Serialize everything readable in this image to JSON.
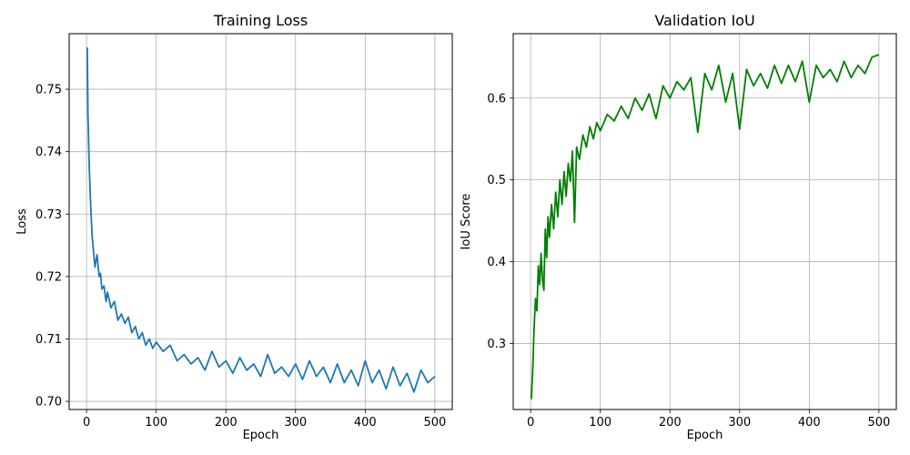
{
  "chart_data": [
    {
      "type": "line",
      "title": "Training Loss",
      "xlabel": "Epoch",
      "ylabel": "Loss",
      "xlim": [
        -25,
        525
      ],
      "ylim": [
        0.6987,
        0.7589
      ],
      "xticks": [
        0,
        100,
        200,
        300,
        400,
        500
      ],
      "yticks": [
        0.7,
        0.71,
        0.72,
        0.73,
        0.74,
        0.75
      ],
      "ytick_labels": [
        "0.70",
        "0.71",
        "0.72",
        "0.73",
        "0.74",
        "0.75"
      ],
      "grid": true,
      "color": "#1f77b4",
      "series": [
        {
          "x": [
            1,
            2,
            4,
            6,
            8,
            10,
            12,
            15,
            18,
            20,
            22,
            25,
            28,
            30,
            35,
            40,
            45,
            50,
            55,
            60,
            65,
            70,
            75,
            80,
            85,
            90,
            95,
            100,
            110,
            120,
            130,
            140,
            150,
            160,
            170,
            180,
            190,
            200,
            210,
            220,
            230,
            240,
            250,
            260,
            270,
            280,
            290,
            300,
            310,
            320,
            330,
            340,
            350,
            360,
            370,
            380,
            390,
            400,
            410,
            420,
            430,
            440,
            450,
            460,
            470,
            480,
            490,
            500
          ],
          "y": [
            0.7567,
            0.746,
            0.737,
            0.731,
            0.7265,
            0.724,
            0.7215,
            0.7235,
            0.72,
            0.7205,
            0.718,
            0.7185,
            0.716,
            0.7175,
            0.715,
            0.716,
            0.713,
            0.714,
            0.7125,
            0.7135,
            0.711,
            0.712,
            0.71,
            0.711,
            0.709,
            0.71,
            0.7085,
            0.7095,
            0.708,
            0.709,
            0.7065,
            0.7075,
            0.706,
            0.707,
            0.705,
            0.708,
            0.7055,
            0.7065,
            0.7045,
            0.707,
            0.705,
            0.706,
            0.704,
            0.7075,
            0.7045,
            0.7055,
            0.704,
            0.706,
            0.7035,
            0.7065,
            0.704,
            0.7055,
            0.703,
            0.706,
            0.703,
            0.705,
            0.7025,
            0.7065,
            0.703,
            0.705,
            0.702,
            0.7055,
            0.7025,
            0.7045,
            0.7015,
            0.705,
            0.703,
            0.704
          ]
        }
      ]
    },
    {
      "type": "line",
      "title": "Validation IoU",
      "xlabel": "Epoch",
      "ylabel": "IoU Score",
      "xlim": [
        -25,
        525
      ],
      "ylim": [
        0.2193,
        0.6787
      ],
      "xticks": [
        0,
        100,
        200,
        300,
        400,
        500
      ],
      "yticks": [
        0.3,
        0.4,
        0.5,
        0.6
      ],
      "ytick_labels": [
        "0.3",
        "0.4",
        "0.5",
        "0.6"
      ],
      "grid": true,
      "color": "#008000",
      "series": [
        {
          "x": [
            1,
            3,
            5,
            7,
            9,
            11,
            13,
            15,
            17,
            19,
            21,
            23,
            25,
            27,
            30,
            33,
            36,
            39,
            42,
            45,
            48,
            51,
            54,
            57,
            60,
            63,
            66,
            70,
            75,
            80,
            85,
            90,
            95,
            100,
            110,
            120,
            130,
            140,
            150,
            160,
            170,
            180,
            190,
            200,
            210,
            220,
            230,
            240,
            250,
            260,
            270,
            280,
            290,
            300,
            310,
            320,
            330,
            340,
            350,
            360,
            370,
            380,
            390,
            400,
            410,
            420,
            430,
            440,
            450,
            460,
            470,
            480,
            490,
            500
          ],
          "y": [
            0.232,
            0.268,
            0.32,
            0.355,
            0.34,
            0.395,
            0.372,
            0.41,
            0.378,
            0.365,
            0.44,
            0.405,
            0.455,
            0.43,
            0.47,
            0.44,
            0.485,
            0.455,
            0.5,
            0.47,
            0.51,
            0.48,
            0.52,
            0.498,
            0.535,
            0.448,
            0.54,
            0.525,
            0.555,
            0.54,
            0.565,
            0.55,
            0.57,
            0.56,
            0.58,
            0.572,
            0.59,
            0.575,
            0.6,
            0.585,
            0.605,
            0.575,
            0.615,
            0.6,
            0.62,
            0.61,
            0.625,
            0.558,
            0.63,
            0.61,
            0.64,
            0.595,
            0.63,
            0.562,
            0.635,
            0.615,
            0.63,
            0.612,
            0.64,
            0.618,
            0.64,
            0.62,
            0.645,
            0.595,
            0.64,
            0.625,
            0.635,
            0.62,
            0.645,
            0.625,
            0.64,
            0.63,
            0.65,
            0.653
          ]
        }
      ]
    }
  ]
}
